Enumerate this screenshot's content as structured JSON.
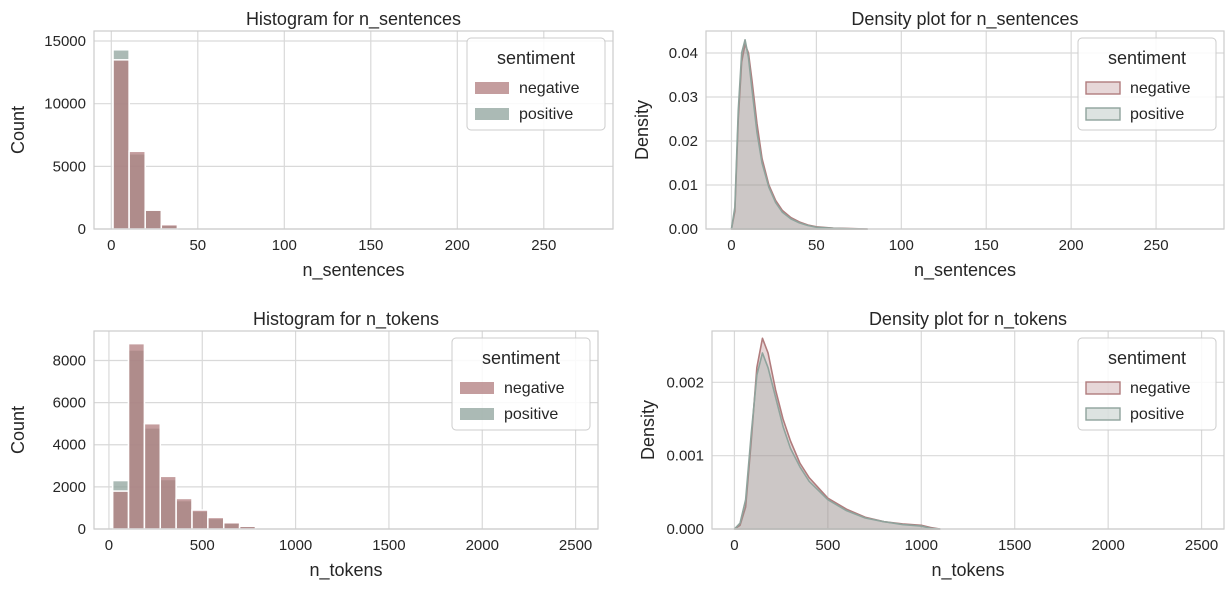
{
  "colors": {
    "negative": "#b07c7d",
    "positive": "#8fa39c",
    "grid": "#d9d9d9",
    "spine": "#cccccc"
  },
  "chart_data": [
    {
      "id": "hist-sentences",
      "type": "bar",
      "title": "Histogram for n_sentences",
      "xlabel": "n_sentences",
      "ylabel": "Count",
      "xlim": [
        -10,
        290
      ],
      "ylim": [
        0,
        15800
      ],
      "xticks": [
        0,
        50,
        100,
        150,
        200,
        250
      ],
      "yticks": [
        0,
        5000,
        10000,
        15000
      ],
      "bin_width": 9.3,
      "legend": {
        "title": "sentiment",
        "position": "top-right",
        "entries": [
          "negative",
          "positive"
        ]
      },
      "bin_starts": [
        1,
        10.3,
        19.6,
        28.9
      ],
      "series": [
        {
          "name": "negative",
          "values": [
            13500,
            6200,
            1500,
            350
          ]
        },
        {
          "name": "positive",
          "values": [
            14300,
            6000,
            1600,
            300
          ]
        }
      ]
    },
    {
      "id": "density-sentences",
      "type": "area",
      "title": "Density plot for n_sentences",
      "xlabel": "n_sentences",
      "ylabel": "Density",
      "xlim": [
        -15,
        290
      ],
      "ylim": [
        0,
        0.045
      ],
      "xticks": [
        0,
        50,
        100,
        150,
        200,
        250
      ],
      "yticks": [
        0.0,
        0.01,
        0.02,
        0.03,
        0.04
      ],
      "ytick_labels": [
        "0.00",
        "0.01",
        "0.02",
        "0.03",
        "0.04"
      ],
      "legend": {
        "title": "sentiment",
        "position": "top-right",
        "entries": [
          "negative",
          "positive"
        ]
      },
      "series": [
        {
          "name": "negative",
          "x": [
            0,
            2,
            4,
            6,
            8,
            10,
            12,
            15,
            18,
            22,
            26,
            30,
            35,
            40,
            45,
            50,
            60,
            70,
            80
          ],
          "y": [
            0,
            0.004,
            0.025,
            0.038,
            0.042,
            0.04,
            0.034,
            0.024,
            0.016,
            0.01,
            0.0065,
            0.0042,
            0.0026,
            0.0016,
            0.0009,
            0.0005,
            0.0002,
            0.0001,
            0
          ]
        },
        {
          "name": "positive",
          "x": [
            0,
            2,
            4,
            6,
            8,
            10,
            12,
            15,
            18,
            22,
            26,
            30,
            35,
            40,
            45,
            50,
            60,
            70,
            80
          ],
          "y": [
            0,
            0.005,
            0.027,
            0.04,
            0.043,
            0.039,
            0.032,
            0.022,
            0.015,
            0.0095,
            0.006,
            0.0038,
            0.0023,
            0.0014,
            0.0008,
            0.0004,
            0.00015,
            5e-05,
            0
          ]
        }
      ]
    },
    {
      "id": "hist-tokens",
      "type": "bar",
      "title": "Histogram for n_tokens",
      "xlabel": "n_tokens",
      "ylabel": "Count",
      "xlim": [
        -80,
        2620
      ],
      "ylim": [
        0,
        9400
      ],
      "xticks": [
        0,
        500,
        1000,
        1500,
        2000,
        2500
      ],
      "yticks": [
        0,
        2000,
        4000,
        6000,
        8000
      ],
      "bin_width": 85,
      "legend": {
        "title": "sentiment",
        "position": "top-right",
        "entries": [
          "negative",
          "positive"
        ]
      },
      "bin_starts": [
        20,
        105,
        190,
        275,
        360,
        445,
        530,
        615,
        700
      ],
      "series": [
        {
          "name": "negative",
          "values": [
            1800,
            8800,
            5000,
            2500,
            1450,
            900,
            550,
            300,
            130
          ]
        },
        {
          "name": "positive",
          "values": [
            2300,
            8500,
            4800,
            2350,
            1350,
            850,
            500,
            280,
            120
          ]
        }
      ]
    },
    {
      "id": "density-tokens",
      "type": "area",
      "title": "Density plot for n_tokens",
      "xlabel": "n_tokens",
      "ylabel": "Density",
      "xlim": [
        -120,
        2620
      ],
      "ylim": [
        0,
        0.0027
      ],
      "xticks": [
        0,
        500,
        1000,
        1500,
        2000,
        2500
      ],
      "yticks": [
        0.0,
        0.001,
        0.002
      ],
      "ytick_labels": [
        "0.000",
        "0.001",
        "0.002"
      ],
      "legend": {
        "title": "sentiment",
        "position": "top-right",
        "entries": [
          "negative",
          "positive"
        ]
      },
      "series": [
        {
          "name": "negative",
          "x": [
            0,
            30,
            60,
            90,
            120,
            150,
            180,
            220,
            260,
            300,
            350,
            400,
            500,
            600,
            700,
            800,
            900,
            1000,
            1050,
            1100
          ],
          "y": [
            0,
            5e-05,
            0.0003,
            0.0012,
            0.0022,
            0.0026,
            0.0024,
            0.0019,
            0.0015,
            0.0012,
            0.0009,
            0.0007,
            0.00042,
            0.00027,
            0.00016,
            0.0001,
            7e-05,
            5e-05,
            2e-05,
            0
          ]
        },
        {
          "name": "positive",
          "x": [
            0,
            30,
            60,
            90,
            120,
            150,
            180,
            220,
            260,
            300,
            350,
            400,
            500,
            600,
            700,
            800,
            900,
            1000,
            1050,
            1100
          ],
          "y": [
            0,
            8e-05,
            0.0004,
            0.0013,
            0.0021,
            0.0024,
            0.0022,
            0.0018,
            0.0014,
            0.0011,
            0.00085,
            0.00065,
            0.0004,
            0.00025,
            0.00015,
            0.0001,
            6e-05,
            4e-05,
            1e-05,
            0
          ]
        }
      ]
    }
  ]
}
